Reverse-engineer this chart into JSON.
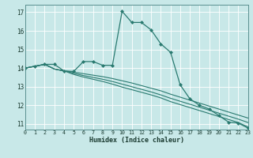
{
  "xlabel": "Humidex (Indice chaleur)",
  "bg_color": "#c8e8e8",
  "grid_color": "#aad4d4",
  "line_color": "#2a7a70",
  "xlim": [
    0,
    23
  ],
  "ylim": [
    10.7,
    17.4
  ],
  "yticks": [
    11,
    12,
    13,
    14,
    15,
    16,
    17
  ],
  "xticks": [
    0,
    1,
    2,
    3,
    4,
    5,
    6,
    7,
    8,
    9,
    10,
    11,
    12,
    13,
    14,
    15,
    16,
    17,
    18,
    19,
    20,
    21,
    22,
    23
  ],
  "line1_x": [
    0,
    1,
    2,
    3,
    4,
    5,
    6,
    7,
    8,
    9,
    10,
    11,
    12,
    13,
    14,
    15,
    16,
    17,
    18,
    19,
    20,
    21,
    22,
    23
  ],
  "line1_y": [
    14.0,
    14.1,
    14.2,
    13.95,
    13.85,
    13.78,
    13.7,
    13.62,
    13.54,
    13.44,
    13.32,
    13.2,
    13.06,
    12.92,
    12.78,
    12.6,
    12.44,
    12.28,
    12.12,
    11.96,
    11.8,
    11.64,
    11.48,
    11.32
  ],
  "line2_x": [
    0,
    1,
    2,
    3,
    4,
    5,
    6,
    7,
    8,
    9,
    10,
    11,
    12,
    13,
    14,
    15,
    16,
    17,
    18,
    19,
    20,
    21,
    22,
    23
  ],
  "line2_y": [
    14.0,
    14.1,
    14.2,
    13.95,
    13.85,
    13.72,
    13.6,
    13.5,
    13.4,
    13.28,
    13.14,
    13.0,
    12.86,
    12.72,
    12.56,
    12.38,
    12.22,
    12.06,
    11.9,
    11.74,
    11.58,
    11.42,
    11.26,
    11.08
  ],
  "line3_x": [
    0,
    1,
    2,
    3,
    4,
    5,
    6,
    7,
    8,
    9,
    10,
    11,
    12,
    13,
    14,
    15,
    16,
    17,
    18,
    19,
    20,
    21,
    22,
    23
  ],
  "line3_y": [
    14.0,
    14.1,
    14.2,
    13.95,
    13.85,
    13.66,
    13.52,
    13.4,
    13.28,
    13.14,
    12.98,
    12.84,
    12.7,
    12.56,
    12.4,
    12.2,
    12.04,
    11.88,
    11.72,
    11.56,
    11.4,
    11.24,
    11.08,
    10.84
  ],
  "main_x": [
    0,
    1,
    2,
    3,
    4,
    5,
    6,
    7,
    8,
    9,
    10,
    11,
    12,
    13,
    14,
    15,
    16,
    17,
    18,
    19,
    20,
    21,
    22,
    23
  ],
  "main_y": [
    14.0,
    14.1,
    14.2,
    14.2,
    13.85,
    13.82,
    14.35,
    14.35,
    14.15,
    14.15,
    17.05,
    16.45,
    16.45,
    16.05,
    15.3,
    14.85,
    13.1,
    12.35,
    12.0,
    11.8,
    11.45,
    11.1,
    11.05,
    10.78
  ]
}
